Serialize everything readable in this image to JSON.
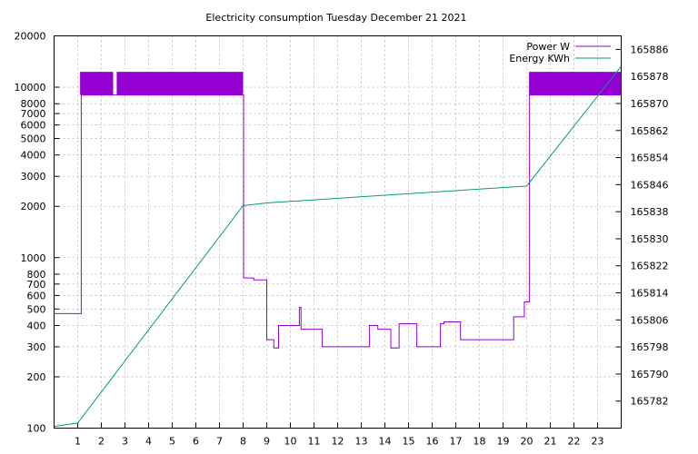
{
  "chart_data": {
    "type": "line",
    "title": "Electricity consumption Tuesday December 21 2021",
    "xlabel": "",
    "ylabel": "",
    "y2label": "",
    "xlim": [
      0,
      24
    ],
    "x_ticks": [
      1,
      2,
      3,
      4,
      5,
      6,
      7,
      8,
      9,
      10,
      11,
      12,
      13,
      14,
      15,
      16,
      17,
      18,
      19,
      20,
      21,
      22,
      23
    ],
    "y_scale": "log",
    "ylim": [
      100,
      20000
    ],
    "y_ticks": [
      100,
      200,
      300,
      400,
      500,
      600,
      700,
      800,
      1000,
      2000,
      3000,
      4000,
      5000,
      6000,
      7000,
      8000,
      10000,
      20000
    ],
    "y2lim": [
      165774,
      165890
    ],
    "y2_ticks": [
      165782,
      165790,
      165798,
      165806,
      165814,
      165822,
      165830,
      165838,
      165846,
      165854,
      165862,
      165870,
      165878,
      165886
    ],
    "grid": true,
    "legend": "top-right",
    "colors": {
      "power": "#9400d3",
      "energy": "#009e73"
    },
    "series": [
      {
        "name": "Power W",
        "axis": "left",
        "steps": [
          [
            0,
            470
          ],
          [
            1.1,
            470
          ],
          [
            1.15,
            9000
          ],
          [
            8.0,
            9000
          ],
          [
            8.02,
            760
          ],
          [
            8.4,
            760
          ],
          [
            8.45,
            740
          ],
          [
            8.98,
            740
          ],
          [
            9.0,
            330
          ],
          [
            9.25,
            330
          ],
          [
            9.3,
            295
          ],
          [
            9.45,
            295
          ],
          [
            9.5,
            400
          ],
          [
            10.35,
            400
          ],
          [
            10.38,
            510
          ],
          [
            10.45,
            380
          ],
          [
            11.3,
            380
          ],
          [
            11.35,
            300
          ],
          [
            13.3,
            300
          ],
          [
            13.35,
            400
          ],
          [
            13.65,
            400
          ],
          [
            13.7,
            380
          ],
          [
            14.2,
            380
          ],
          [
            14.25,
            295
          ],
          [
            14.55,
            295
          ],
          [
            14.6,
            410
          ],
          [
            15.3,
            410
          ],
          [
            15.35,
            300
          ],
          [
            16.3,
            300
          ],
          [
            16.35,
            410
          ],
          [
            16.5,
            420
          ],
          [
            17.1,
            420
          ],
          [
            17.2,
            330
          ],
          [
            19.3,
            330
          ],
          [
            19.45,
            450
          ],
          [
            19.85,
            450
          ],
          [
            19.9,
            550
          ],
          [
            20.1,
            550
          ],
          [
            20.12,
            9000
          ],
          [
            24,
            9000
          ]
        ],
        "bands": [
          {
            "x0": 1.1,
            "x1": 2.5,
            "low": 9000,
            "high": 12300
          },
          {
            "x0": 2.65,
            "x1": 8.0,
            "low": 9000,
            "high": 12300
          },
          {
            "x0": 20.1,
            "x1": 24,
            "low": 9000,
            "high": 12300
          }
        ]
      },
      {
        "name": "Energy KWh",
        "axis": "right",
        "x": [
          0,
          1,
          8,
          9,
          20,
          24
        ],
        "values": [
          165774.5,
          165775.5,
          165839.8,
          165840.6,
          165845.6,
          165881
        ]
      }
    ]
  }
}
